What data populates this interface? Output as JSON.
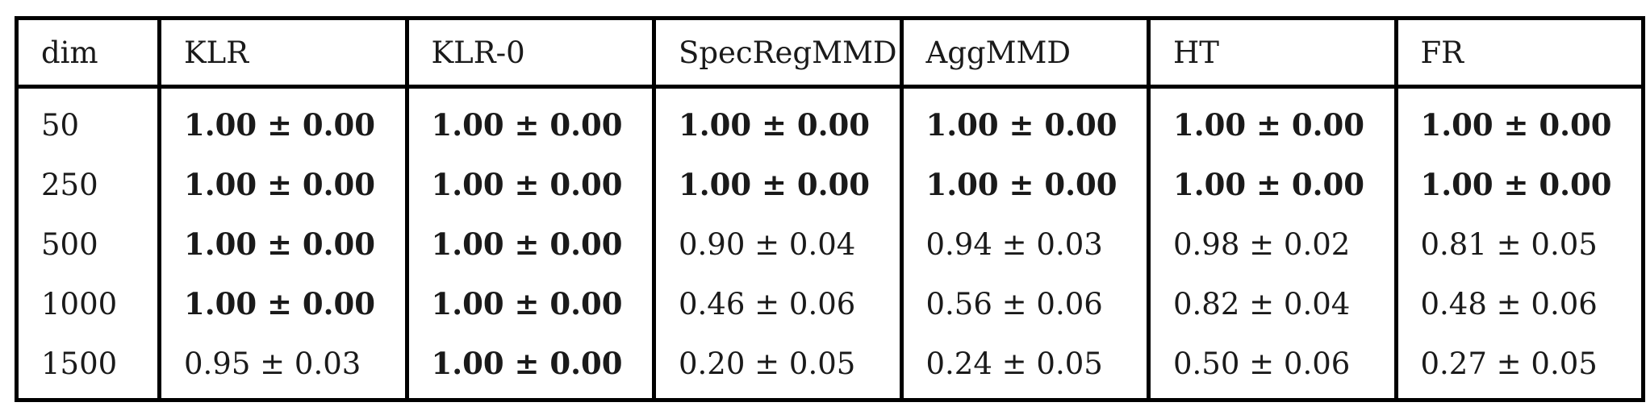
{
  "table": {
    "headers": [
      "dim",
      "KLR",
      "KLR-0",
      "SpecRegMMD",
      "AggMMD",
      "HT",
      "FR"
    ],
    "rows": [
      {
        "dim": "50",
        "cells": [
          {
            "text": "1.00 ± 0.00",
            "bold": true
          },
          {
            "text": "1.00 ± 0.00",
            "bold": true
          },
          {
            "text": "1.00 ± 0.00",
            "bold": true
          },
          {
            "text": "1.00 ± 0.00",
            "bold": true
          },
          {
            "text": "1.00 ± 0.00",
            "bold": true
          },
          {
            "text": "1.00 ± 0.00",
            "bold": true
          }
        ]
      },
      {
        "dim": "250",
        "cells": [
          {
            "text": "1.00 ± 0.00",
            "bold": true
          },
          {
            "text": "1.00 ± 0.00",
            "bold": true
          },
          {
            "text": "1.00 ± 0.00",
            "bold": true
          },
          {
            "text": "1.00 ± 0.00",
            "bold": true
          },
          {
            "text": "1.00 ± 0.00",
            "bold": true
          },
          {
            "text": "1.00 ± 0.00",
            "bold": true
          }
        ]
      },
      {
        "dim": "500",
        "cells": [
          {
            "text": "1.00 ± 0.00",
            "bold": true
          },
          {
            "text": "1.00 ± 0.00",
            "bold": true
          },
          {
            "text": "0.90 ± 0.04",
            "bold": false
          },
          {
            "text": "0.94 ± 0.03",
            "bold": false
          },
          {
            "text": "0.98 ± 0.02",
            "bold": false
          },
          {
            "text": "0.81 ± 0.05",
            "bold": false
          }
        ]
      },
      {
        "dim": "1000",
        "cells": [
          {
            "text": "1.00 ± 0.00",
            "bold": true
          },
          {
            "text": "1.00 ± 0.00",
            "bold": true
          },
          {
            "text": "0.46 ± 0.06",
            "bold": false
          },
          {
            "text": "0.56 ± 0.06",
            "bold": false
          },
          {
            "text": "0.82 ± 0.04",
            "bold": false
          },
          {
            "text": "0.48 ± 0.06",
            "bold": false
          }
        ]
      },
      {
        "dim": "1500",
        "cells": [
          {
            "text": "0.95 ± 0.03",
            "bold": false
          },
          {
            "text": "1.00 ± 0.00",
            "bold": true
          },
          {
            "text": "0.20 ± 0.05",
            "bold": false
          },
          {
            "text": "0.24 ± 0.05",
            "bold": false
          },
          {
            "text": "0.50 ± 0.06",
            "bold": false
          },
          {
            "text": "0.27 ± 0.05",
            "bold": false
          }
        ]
      }
    ]
  }
}
